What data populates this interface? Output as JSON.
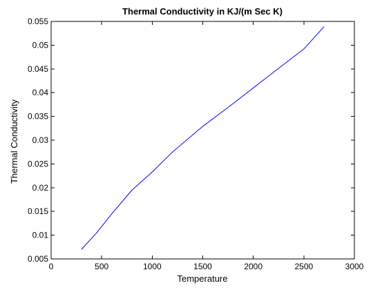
{
  "chart_data": {
    "type": "line",
    "title": "Thermal Conductivity in KJ/(m Sec K)",
    "xlabel": "Temperature",
    "ylabel": "Thermal Conductivity",
    "xlim": [
      0,
      3000
    ],
    "ylim": [
      0.005,
      0.055
    ],
    "xticks": [
      0,
      500,
      1000,
      1500,
      2000,
      2500,
      3000
    ],
    "xtick_labels": [
      "0",
      "500",
      "1000",
      "1500",
      "2000",
      "2500",
      "3000"
    ],
    "yticks": [
      0.005,
      0.01,
      0.015,
      0.02,
      0.025,
      0.03,
      0.035,
      0.04,
      0.045,
      0.05,
      0.055
    ],
    "ytick_labels": [
      "0.005",
      "0.01",
      "0.015",
      "0.02",
      "0.025",
      "0.03",
      "0.035",
      "0.04",
      "0.045",
      "0.05",
      "0.055"
    ],
    "grid": false,
    "series": [
      {
        "color": "#0000ff",
        "x": [
          300,
          450,
          600,
          800,
          1000,
          1200,
          1500,
          1800,
          2000,
          2200,
          2500,
          2700
        ],
        "y": [
          0.007,
          0.0105,
          0.0145,
          0.0195,
          0.0233,
          0.0275,
          0.0329,
          0.0377,
          0.041,
          0.0443,
          0.0492,
          0.0539
        ]
      }
    ]
  }
}
